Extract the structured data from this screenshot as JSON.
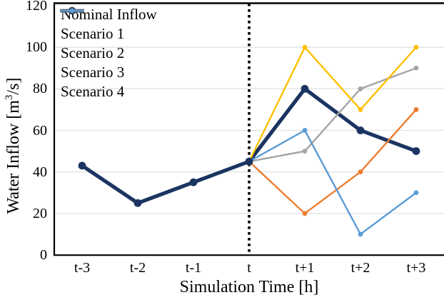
{
  "figure": {
    "background": "#FFFFFF",
    "text_color": "#000000"
  },
  "chart_data": {
    "type": "line",
    "title": "",
    "xlabel": "Simulation Time [h]",
    "ylabel": "Water Inflow [m³/s]",
    "ylabel_parts": {
      "prefix": "Water Inflow [m",
      "sup": "3",
      "suffix": "/s]"
    },
    "categories": [
      "t-3",
      "t-2",
      "t-1",
      "t",
      "t+1",
      "t+2",
      "t+3"
    ],
    "y_ticks": [
      0,
      20,
      40,
      60,
      80,
      100,
      120
    ],
    "ylim": [
      0,
      120
    ],
    "grid": "horizontal",
    "gridline_color": "#E2E2E2",
    "axis_color": "#000000",
    "legend_position": "top-left-inside",
    "annotations": [
      {
        "type": "vline",
        "at_category": "t",
        "style": "dotted",
        "color": "#000000"
      }
    ],
    "series": [
      {
        "name": "Nominal Inflow",
        "color": "#1B3461",
        "line_width": 5.2,
        "marker_radius": 5.4,
        "values": [
          43,
          25,
          35,
          45,
          80,
          60,
          50
        ]
      },
      {
        "name": "Scenario 1",
        "color": "#ED7D31",
        "line_width": 2.4,
        "marker_radius": 3.4,
        "values": [
          null,
          null,
          null,
          45,
          20,
          40,
          70
        ]
      },
      {
        "name": "Scenario 2",
        "color": "#A5A5A5",
        "line_width": 2.4,
        "marker_radius": 3.4,
        "values": [
          null,
          null,
          null,
          45,
          50,
          80,
          90
        ]
      },
      {
        "name": "Scenario 3",
        "color": "#FFC000",
        "line_width": 2.4,
        "marker_radius": 3.4,
        "values": [
          null,
          null,
          null,
          45,
          100,
          70,
          100
        ]
      },
      {
        "name": "Scenario 4",
        "color": "#5B9BD5",
        "line_width": 2.4,
        "marker_radius": 3.4,
        "values": [
          null,
          null,
          null,
          45,
          60,
          10,
          30
        ]
      }
    ]
  }
}
